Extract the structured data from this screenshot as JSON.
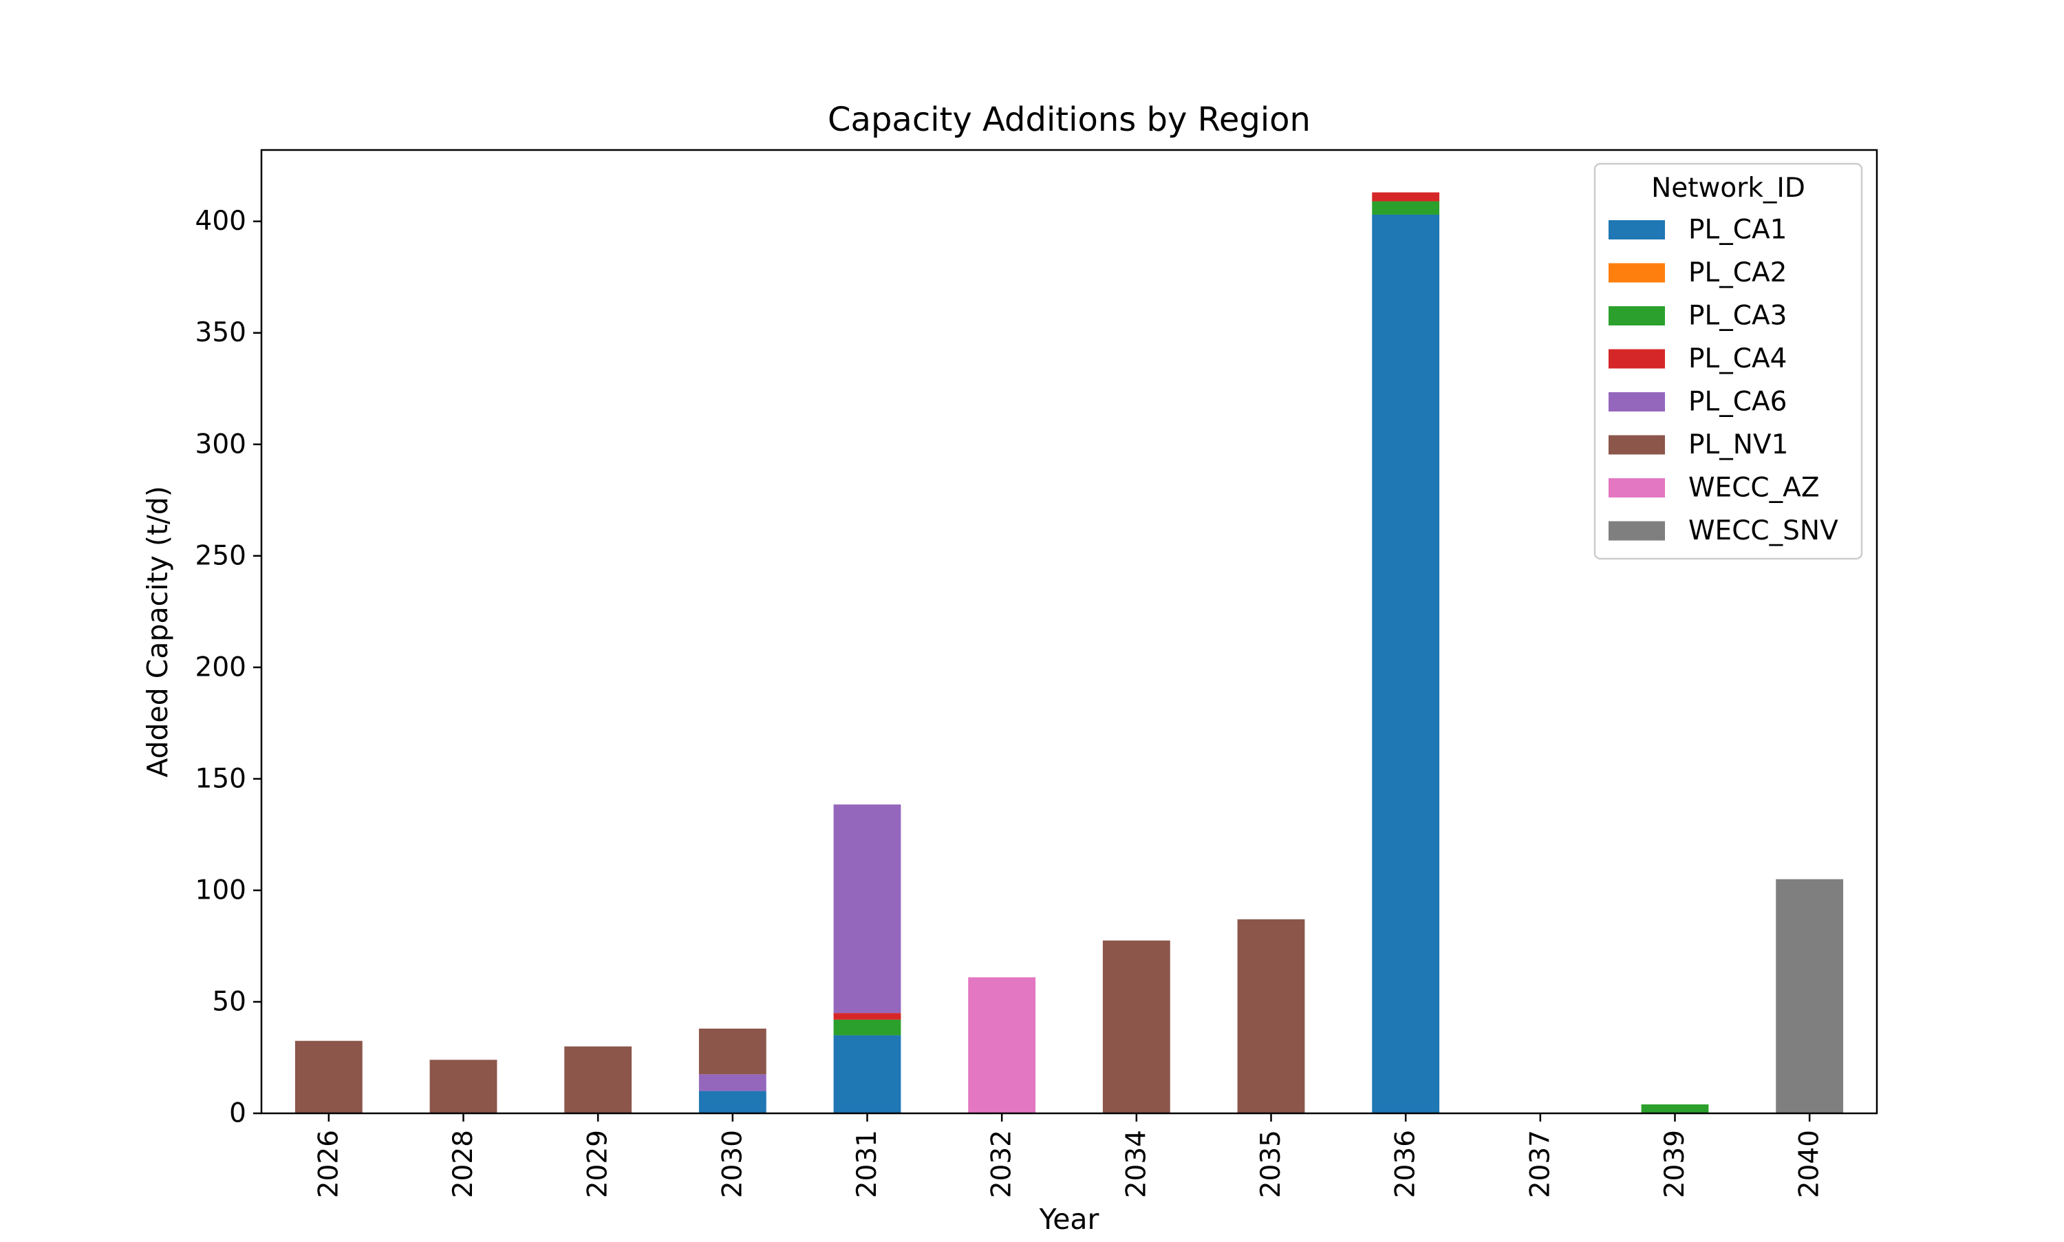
{
  "chart_data": {
    "type": "bar",
    "stacked": true,
    "title": "Capacity Additions by Region",
    "xlabel": "Year",
    "ylabel": "Added Capacity (t/d)",
    "ylim": [
      0,
      432
    ],
    "yticks": [
      0,
      50,
      100,
      150,
      200,
      250,
      300,
      350,
      400
    ],
    "categories": [
      "2026",
      "2028",
      "2029",
      "2030",
      "2031",
      "2032",
      "2034",
      "2035",
      "2036",
      "2037",
      "2039",
      "2040"
    ],
    "legend": {
      "title": "Network_ID",
      "placement": "top-right"
    },
    "grid": false,
    "series": [
      {
        "name": "PL_CA1",
        "color": "#1f77b4",
        "values": [
          0,
          0,
          0,
          10,
          35,
          0,
          0,
          0,
          403,
          0,
          0,
          0
        ]
      },
      {
        "name": "PL_CA2",
        "color": "#ff7f0e",
        "values": [
          0,
          0,
          0,
          0,
          0,
          0,
          0,
          0,
          0,
          0,
          0,
          0
        ]
      },
      {
        "name": "PL_CA3",
        "color": "#2ca02c",
        "values": [
          0,
          0,
          0,
          0,
          7,
          0,
          0,
          0,
          6,
          0,
          4,
          0
        ]
      },
      {
        "name": "PL_CA4",
        "color": "#d62728",
        "values": [
          0,
          0,
          0,
          0,
          3,
          0,
          0,
          0,
          4,
          0,
          0,
          0
        ]
      },
      {
        "name": "PL_CA6",
        "color": "#9467bd",
        "values": [
          0,
          0,
          0,
          7.5,
          93.5,
          0,
          0,
          0,
          0,
          0,
          0,
          0
        ]
      },
      {
        "name": "PL_NV1",
        "color": "#8c564b",
        "values": [
          32.5,
          24,
          30,
          20.5,
          0,
          0,
          77.5,
          87,
          0,
          0,
          0,
          0
        ]
      },
      {
        "name": "WECC_AZ",
        "color": "#e377c2",
        "values": [
          0,
          0,
          0,
          0,
          0,
          61,
          0,
          0,
          0,
          0,
          0,
          0
        ]
      },
      {
        "name": "WECC_SNV",
        "color": "#7f7f7f",
        "values": [
          0,
          0,
          0,
          0,
          0,
          0,
          0,
          0,
          0,
          0,
          0,
          105
        ]
      }
    ]
  }
}
